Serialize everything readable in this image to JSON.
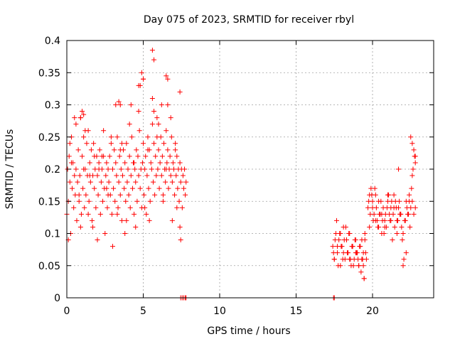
{
  "chart_data": {
    "type": "scatter",
    "title": "Day 075 of 2023, SRMTID for receiver rbyl",
    "xlabel": "GPS time / hours",
    "ylabel": "SRMTID / TECUs",
    "xlim": [
      0,
      24
    ],
    "ylim": [
      0,
      0.4
    ],
    "grid": true,
    "marker": "+",
    "color": "#ff0000",
    "x_ticks": [
      0,
      5,
      10,
      15,
      20
    ],
    "y_ticks": [
      0,
      0.05,
      0.1,
      0.15,
      0.2,
      0.25,
      0.3,
      0.35,
      0.4
    ],
    "x_tick_labels": [
      "0",
      "5",
      "10",
      "15",
      "20"
    ],
    "y_tick_labels": [
      "0",
      "0.05",
      "0.1",
      "0.15",
      "0.2",
      "0.25",
      "0.3",
      "0.35",
      "0.4"
    ],
    "series": [
      {
        "x": [
          0.0,
          0.05,
          0.1,
          0.15,
          0.2,
          0.25,
          0.3,
          0.35,
          0.4,
          0.45,
          0.5,
          0.55,
          0.6,
          0.65,
          0.7,
          0.75,
          0.8,
          0.85,
          0.9,
          0.95,
          1.0,
          1.05,
          1.1,
          1.15,
          1.2,
          1.25,
          1.3,
          1.35,
          1.4,
          1.45,
          1.5,
          1.55,
          1.6,
          1.65,
          1.7,
          1.75,
          1.8,
          1.85,
          1.9,
          1.95,
          2.0,
          2.05,
          2.1,
          2.15,
          2.2,
          2.25,
          2.3,
          2.35,
          2.4,
          2.45,
          2.5,
          2.55,
          2.6,
          2.65,
          2.7,
          2.75,
          2.8,
          2.85,
          2.9,
          2.95,
          3.0,
          3.05,
          3.1,
          3.15,
          3.2,
          3.25,
          3.3,
          3.35,
          3.4,
          3.45,
          3.5,
          3.55,
          3.6,
          3.65,
          3.7,
          3.75,
          3.8,
          3.85,
          3.9,
          3.95,
          4.0,
          4.05,
          4.1,
          4.15,
          4.2,
          4.25,
          4.3,
          4.35,
          4.4,
          4.45,
          4.5,
          4.55,
          4.6,
          4.65,
          4.7,
          4.75,
          4.8,
          4.85,
          4.9,
          4.95,
          5.0,
          5.05,
          5.1,
          5.15,
          5.2,
          5.25,
          5.3,
          5.35,
          5.4,
          5.45,
          5.5,
          5.55,
          5.6,
          5.65,
          5.7,
          5.75,
          5.8,
          5.85,
          5.9,
          5.95,
          6.0,
          6.05,
          6.1,
          6.15,
          6.2,
          6.25,
          6.3,
          6.35,
          6.4,
          6.45,
          6.5,
          6.55,
          6.6,
          6.65,
          6.7,
          6.75,
          6.8,
          6.85,
          6.9,
          6.95,
          7.0,
          7.05,
          7.1,
          7.15,
          7.2,
          7.25,
          7.3,
          7.35,
          7.4,
          7.45,
          7.5,
          7.55,
          7.6,
          7.65,
          7.7,
          7.75,
          7.8,
          0.1,
          0.3,
          0.6,
          0.9,
          1.2,
          1.5,
          1.8,
          2.1,
          2.4,
          2.7,
          3.0,
          3.3,
          3.6,
          3.9,
          4.2,
          4.5,
          4.8,
          5.1,
          5.4,
          5.7,
          6.0,
          6.3,
          6.6,
          6.9,
          7.2,
          0.2,
          0.5,
          0.8,
          1.1,
          1.4,
          1.7,
          2.0,
          2.3,
          2.6,
          2.9,
          3.2,
          3.5,
          3.8,
          4.1,
          4.4,
          4.7,
          5.0,
          5.3,
          5.6,
          5.9,
          6.2,
          6.5,
          6.8,
          7.1,
          7.4,
          5.6,
          5.7,
          6.5,
          6.6,
          4.9,
          5.0,
          4.7,
          3.4,
          3.5,
          1.0,
          1.1,
          0.9,
          7.4,
          7.45,
          7.45,
          7.55,
          7.65,
          7.75,
          7.8,
          17.45,
          17.5,
          17.4,
          17.5,
          17.6,
          17.7,
          17.8,
          17.9,
          18.0,
          18.1,
          18.2,
          18.3,
          18.4,
          18.5,
          18.6,
          18.7,
          18.8,
          18.9,
          19.0,
          19.1,
          19.2,
          19.3,
          19.4,
          19.5,
          19.6,
          17.45,
          17.55,
          17.65,
          17.75,
          17.85,
          17.95,
          18.05,
          18.15,
          18.25,
          18.35,
          18.45,
          18.55,
          18.65,
          18.75,
          18.85,
          18.95,
          19.05,
          19.15,
          19.25,
          19.35,
          19.45,
          19.55,
          17.5,
          17.7,
          17.9,
          18.1,
          18.3,
          18.5,
          18.7,
          18.9,
          19.1,
          19.3,
          19.5,
          19.7,
          19.8,
          19.9,
          20.0,
          20.1,
          20.2,
          20.3,
          20.4,
          20.5,
          20.6,
          20.7,
          20.8,
          20.9,
          21.0,
          21.1,
          21.2,
          21.3,
          21.4,
          21.5,
          21.6,
          21.7,
          21.8,
          21.9,
          22.0,
          22.1,
          22.2,
          22.3,
          22.4,
          22.5,
          22.6,
          22.7,
          22.8,
          19.75,
          19.85,
          19.95,
          20.05,
          20.15,
          20.25,
          20.35,
          20.45,
          20.55,
          20.65,
          20.75,
          20.85,
          20.95,
          21.05,
          21.15,
          21.25,
          21.35,
          21.45,
          21.55,
          21.65,
          21.75,
          21.85,
          21.95,
          22.05,
          22.15,
          22.25,
          22.35,
          22.45,
          22.55,
          22.65,
          22.75,
          19.8,
          20.0,
          20.2,
          20.4,
          20.6,
          20.8,
          21.0,
          21.2,
          21.4,
          21.6,
          21.8,
          22.0,
          22.2,
          22.4,
          22.6,
          22.8,
          22.5,
          22.6,
          22.7,
          22.8,
          21.7,
          19.4,
          19.45
        ],
        "y": [
          0.13,
          0.2,
          0.15,
          0.22,
          0.18,
          0.1,
          0.25,
          0.17,
          0.21,
          0.14,
          0.19,
          0.16,
          0.2,
          0.12,
          0.18,
          0.23,
          0.15,
          0.19,
          0.28,
          0.13,
          0.22,
          0.17,
          0.25,
          0.14,
          0.2,
          0.16,
          0.24,
          0.19,
          0.26,
          0.15,
          0.21,
          0.18,
          0.23,
          0.12,
          0.19,
          0.24,
          0.17,
          0.2,
          0.14,
          0.22,
          0.19,
          0.16,
          0.21,
          0.23,
          0.13,
          0.18,
          0.2,
          0.15,
          0.22,
          0.17,
          0.1,
          0.19,
          0.21,
          0.14,
          0.2,
          0.18,
          0.22,
          0.16,
          0.24,
          0.13,
          0.2,
          0.17,
          0.23,
          0.15,
          0.21,
          0.19,
          0.25,
          0.14,
          0.18,
          0.22,
          0.16,
          0.2,
          0.12,
          0.19,
          0.23,
          0.17,
          0.21,
          0.15,
          0.24,
          0.18,
          0.2,
          0.16,
          0.22,
          0.14,
          0.19,
          0.25,
          0.17,
          0.21,
          0.13,
          0.2,
          0.18,
          0.23,
          0.15,
          0.22,
          0.19,
          0.26,
          0.17,
          0.2,
          0.14,
          0.21,
          0.24,
          0.16,
          0.2,
          0.22,
          0.13,
          0.19,
          0.25,
          0.17,
          0.23,
          0.15,
          0.21,
          0.2,
          0.27,
          0.18,
          0.24,
          0.16,
          0.22,
          0.19,
          0.28,
          0.2,
          0.23,
          0.17,
          0.21,
          0.25,
          0.19,
          0.22,
          0.16,
          0.24,
          0.2,
          0.18,
          0.26,
          0.21,
          0.23,
          0.17,
          0.2,
          0.22,
          0.19,
          0.25,
          0.18,
          0.21,
          0.2,
          0.16,
          0.23,
          0.19,
          0.22,
          0.17,
          0.2,
          0.15,
          0.21,
          0.18,
          0.2,
          0.14,
          0.19,
          0.17,
          0.2,
          0.16,
          0.18,
          0.09,
          0.21,
          0.27,
          0.11,
          0.26,
          0.19,
          0.22,
          0.2,
          0.26,
          0.16,
          0.08,
          0.13,
          0.24,
          0.12,
          0.3,
          0.11,
          0.33,
          0.14,
          0.12,
          0.29,
          0.27,
          0.15,
          0.3,
          0.12,
          0.14,
          0.24,
          0.28,
          0.16,
          0.2,
          0.13,
          0.11,
          0.09,
          0.22,
          0.17,
          0.25,
          0.3,
          0.23,
          0.1,
          0.27,
          0.21,
          0.29,
          0.34,
          0.23,
          0.31,
          0.25,
          0.3,
          0.2,
          0.28,
          0.24,
          0.32,
          0.385,
          0.37,
          0.345,
          0.34,
          0.35,
          0.34,
          0.33,
          0.305,
          0.3,
          0.29,
          0.285,
          0.28,
          0.11,
          0.09,
          0.0,
          0.0,
          0.0,
          0.0,
          0.0,
          0.0,
          0.0,
          0.08,
          0.06,
          0.1,
          0.07,
          0.09,
          0.05,
          0.08,
          0.11,
          0.06,
          0.09,
          0.07,
          0.1,
          0.05,
          0.08,
          0.06,
          0.09,
          0.07,
          0.05,
          0.08,
          0.06,
          0.07,
          0.09,
          0.06,
          0.07,
          0.09,
          0.12,
          0.05,
          0.1,
          0.08,
          0.06,
          0.09,
          0.11,
          0.07,
          0.1,
          0.06,
          0.08,
          0.05,
          0.09,
          0.07,
          0.06,
          0.08,
          0.04,
          0.06,
          0.03,
          0.07,
          0.06,
          0.08,
          0.1,
          0.07,
          0.09,
          0.06,
          0.08,
          0.07,
          0.05,
          0.09,
          0.1,
          0.14,
          0.16,
          0.17,
          0.15,
          0.13,
          0.16,
          0.12,
          0.11,
          0.13,
          0.1,
          0.14,
          0.12,
          0.11,
          0.15,
          0.13,
          0.14,
          0.09,
          0.16,
          0.15,
          0.12,
          0.14,
          0.13,
          0.11,
          0.1,
          0.12,
          0.15,
          0.13,
          0.16,
          0.14,
          0.15,
          0.13,
          0.14,
          0.15,
          0.13,
          0.16,
          0.12,
          0.17,
          0.14,
          0.11,
          0.13,
          0.15,
          0.12,
          0.1,
          0.13,
          0.14,
          0.16,
          0.12,
          0.15,
          0.13,
          0.11,
          0.14,
          0.12,
          0.15,
          0.13,
          0.09,
          0.06,
          0.12,
          0.14,
          0.13,
          0.11,
          0.17,
          0.2,
          0.22,
          0.11,
          0.14,
          0.12,
          0.15,
          0.13,
          0.11,
          0.16,
          0.12,
          0.14,
          0.1,
          0.13,
          0.05,
          0.07,
          0.15,
          0.19,
          0.21,
          0.25,
          0.24,
          0.23,
          0.22,
          0.2,
          0.05,
          0.03
        ]
      }
    ]
  }
}
